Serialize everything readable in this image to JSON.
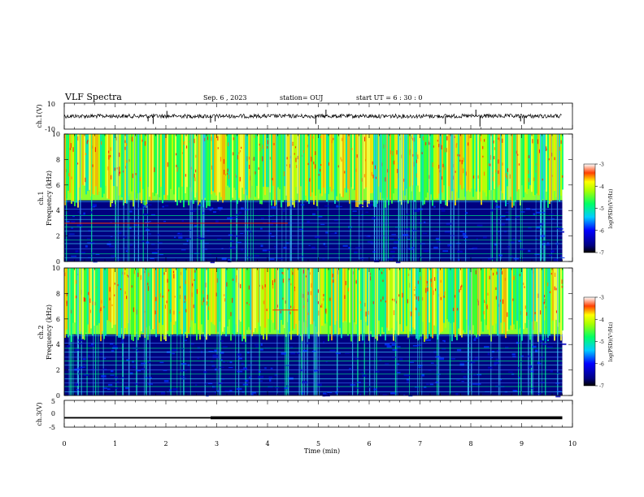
{
  "header": {
    "title": "VLF Spectra",
    "date": "Sep. 6 , 2023",
    "station": "station= OUJ",
    "start": "start  UT =   6 : 30 : 0"
  },
  "chart_data": [
    {
      "type": "line",
      "id": "ch1-waveform",
      "ylabel": "ch.1(V)",
      "ylim": [
        -10,
        10
      ],
      "yticks": [
        "10",
        "-10"
      ],
      "baseline": 0,
      "spikes": [
        {
          "x": 1.65,
          "y": -2
        },
        {
          "x": 1.75,
          "y": -3
        },
        {
          "x": 2.02,
          "y": 2
        },
        {
          "x": 2.88,
          "y": -2.5
        },
        {
          "x": 2.97,
          "y": -2
        },
        {
          "x": 4.95,
          "y": -3
        },
        {
          "x": 5.15,
          "y": 2.5
        },
        {
          "x": 7.5,
          "y": -3
        },
        {
          "x": 8.1,
          "y": 2.5
        },
        {
          "x": 8.18,
          "y": -4
        },
        {
          "x": 8.98,
          "y": -2
        },
        {
          "x": 9.05,
          "y": -3
        }
      ]
    },
    {
      "type": "heatmap",
      "id": "ch1-spectrogram",
      "ylabel": "ch.1\nFrequency (kHz)",
      "ylim": [
        0,
        10
      ],
      "yticks": [
        "0",
        "2",
        "4",
        "6",
        "8",
        "10"
      ],
      "colorbar": {
        "label": "log(PSD)(V²/Hz)",
        "range": [
          -7,
          -3
        ],
        "ticks": [
          "-3",
          "-4",
          "-5",
          "-6",
          "-7"
        ]
      },
      "harmonic_lines_khz": [
        0.3,
        0.6,
        1.0,
        1.4,
        1.7,
        2.0,
        2.4,
        2.7,
        3.0,
        3.3,
        3.6,
        4.1,
        4.7
      ],
      "strong_line_khz": 3.0,
      "strong_line_xrange": [
        0,
        4.4
      ]
    },
    {
      "type": "heatmap",
      "id": "ch2-spectrogram",
      "ylabel": "ch.2\nFrequency (kHz)",
      "ylim": [
        0,
        10
      ],
      "yticks": [
        "0",
        "2",
        "4",
        "6",
        "8",
        "10"
      ],
      "colorbar": {
        "label": "log(PSD)(V²/Hz)",
        "range": [
          -7,
          -3
        ],
        "ticks": [
          "-3",
          "-4",
          "-5",
          "-6",
          "-7"
        ]
      },
      "harmonic_lines_khz": [
        0.3,
        0.7,
        1.0,
        1.3,
        1.7,
        2.0,
        2.4,
        2.7,
        3.0,
        3.4,
        3.7,
        4.1,
        4.7
      ],
      "strong_line_khz": 6.7,
      "strong_line_xrange": [
        4.1,
        4.6
      ]
    },
    {
      "type": "line",
      "id": "ch3-level",
      "ylabel": "ch.3(V)",
      "ylim": [
        -5,
        5
      ],
      "yticks": [
        "5",
        "0",
        "-5"
      ],
      "x": [
        0,
        2.88,
        2.88,
        9.8
      ],
      "y": [
        -1.5,
        -1.5,
        -1.5,
        -1.5
      ],
      "thick_from_x": 2.88
    }
  ],
  "xaxis": {
    "label": "Time (min)",
    "range": [
      0,
      10
    ],
    "ticks": [
      "0",
      "1",
      "2",
      "3",
      "4",
      "5",
      "6",
      "7",
      "8",
      "9",
      "10"
    ],
    "data_end": 9.8
  },
  "colors": {
    "background": "#000080",
    "colormap": [
      "#000080",
      "#0000ff",
      "#00a0ff",
      "#00ffff",
      "#00ff60",
      "#a0ff00",
      "#ffff00",
      "#ff8000",
      "#ff0000",
      "#ffffff"
    ]
  }
}
